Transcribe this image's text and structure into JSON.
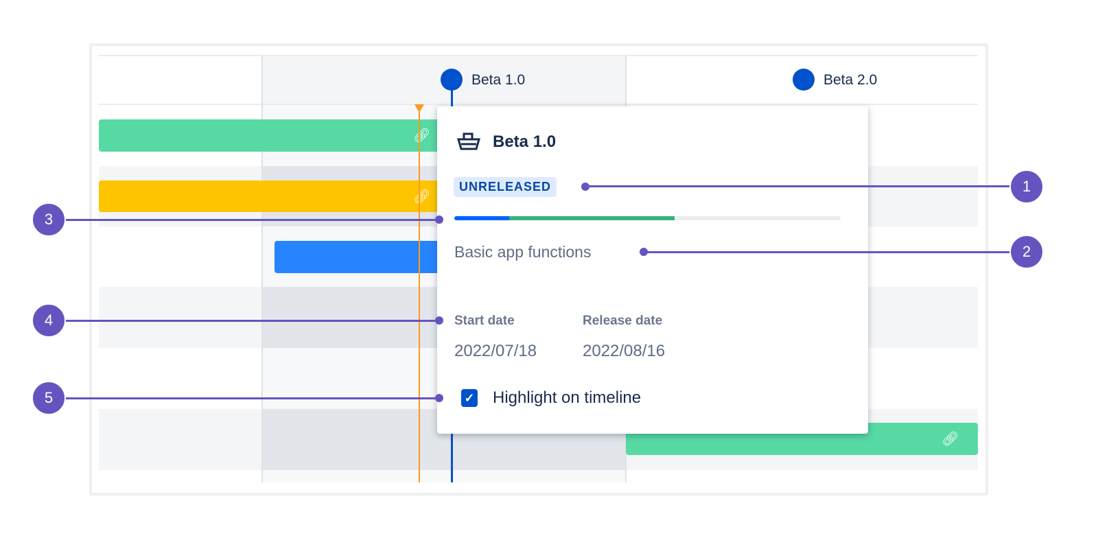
{
  "timeline": {
    "releases": [
      {
        "label": "Beta 1.0",
        "icon": "release-dot"
      },
      {
        "label": "Beta 2.0",
        "icon": "release-dot"
      }
    ],
    "bar_colors": {
      "green": "#57d9a3",
      "yellow": "#ffc400",
      "blue": "#2684ff"
    },
    "today_color": "#ff991f",
    "link_icon": "link-icon"
  },
  "popup": {
    "title": "Beta 1.0",
    "icon": "ship-icon",
    "status": "UNRELEASED",
    "progress": {
      "done_percent": 14,
      "in_progress_percent": 43,
      "colors": {
        "done": "#0065ff",
        "in_progress": "#36b37e",
        "todo": "#ebecf0"
      }
    },
    "description": "Basic app functions",
    "start_date_label": "Start date",
    "start_date": "2022/07/18",
    "release_date_label": "Release date",
    "release_date": "2022/08/16",
    "highlight_label": "Highlight on timeline",
    "highlight_checked": true
  },
  "callouts": [
    "1",
    "2",
    "3",
    "4",
    "5"
  ],
  "accent": "#6554c0"
}
